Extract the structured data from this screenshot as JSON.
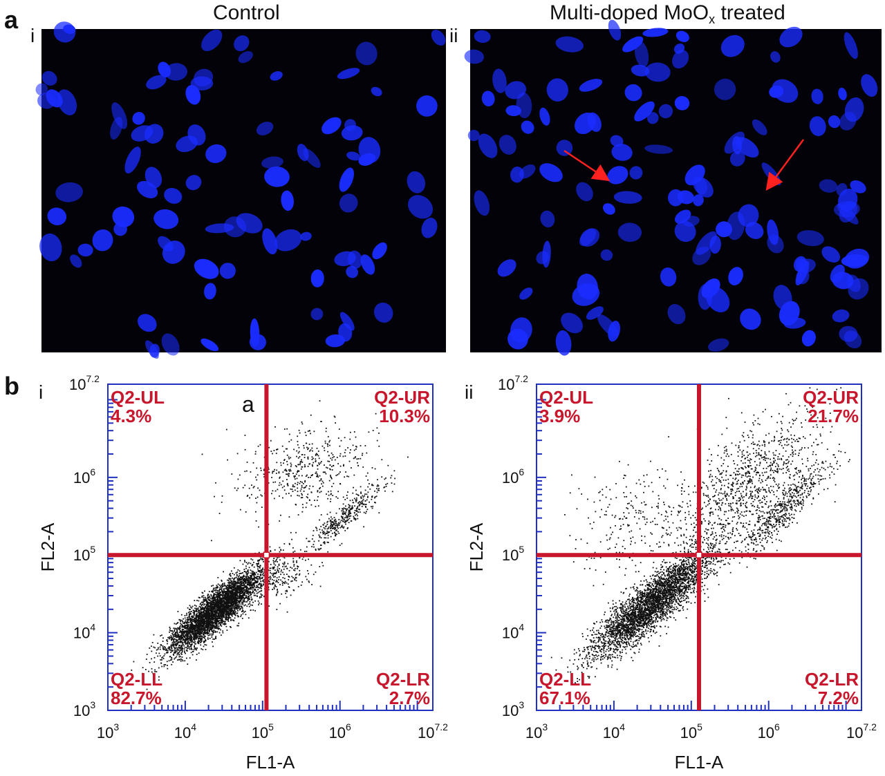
{
  "figure": {
    "panel_a": {
      "letter": "a",
      "images": [
        {
          "sub": "i",
          "title": "Control",
          "title_sub": ""
        },
        {
          "sub": "ii",
          "title": "Multi-doped MoO",
          "title_sub": "x",
          "title_after": " treated"
        }
      ]
    },
    "panel_b": {
      "letter": "b",
      "plots": [
        {
          "sub": "i",
          "corner_label": "a"
        },
        {
          "sub": "ii",
          "corner_label": ""
        }
      ]
    }
  },
  "colors": {
    "nucleus": "#1a2cff",
    "background": "#020208",
    "gate": "#c8162c",
    "axis": "#1f2fc0",
    "dot": "#111111"
  },
  "chart_data": [
    {
      "type": "scatter",
      "title": "",
      "xlabel": "FL1-A",
      "ylabel": "FL2-A",
      "xscale": "log",
      "yscale": "log",
      "xlim_log10": [
        3,
        7.2
      ],
      "ylim_log10": [
        3,
        7.2
      ],
      "x_tick_labels": [
        {
          "base": "10",
          "exp": "3"
        },
        {
          "base": "10",
          "exp": "4"
        },
        {
          "base": "10",
          "exp": "5"
        },
        {
          "base": "10",
          "exp": "6"
        },
        {
          "base": "10",
          "exp": "7.2"
        }
      ],
      "y_tick_labels": [
        {
          "base": "10",
          "exp": "3"
        },
        {
          "base": "10",
          "exp": "4"
        },
        {
          "base": "10",
          "exp": "5"
        },
        {
          "base": "10",
          "exp": "6"
        },
        {
          "base": "10",
          "exp": "7.2"
        }
      ],
      "gate": {
        "x_log10": 5.05,
        "y_log10": 5.0
      },
      "quadrants": [
        {
          "name": "Q2-UL",
          "percent": "4.3%",
          "position": "upper-left"
        },
        {
          "name": "Q2-UR",
          "percent": "10.3%",
          "position": "upper-right"
        },
        {
          "name": "Q2-LL",
          "percent": "82.7%",
          "position": "lower-left"
        },
        {
          "name": "Q2-LR",
          "percent": "2.7%",
          "position": "lower-right"
        }
      ],
      "populations": [
        {
          "cx": 4.4,
          "cy": 4.3,
          "sx": 0.32,
          "sy": 0.28,
          "rho": 0.88,
          "weight": 0.8
        },
        {
          "cx": 5.6,
          "cy": 6.1,
          "sx": 0.45,
          "sy": 0.3,
          "rho": 0.2,
          "weight": 0.1
        },
        {
          "cx": 6.05,
          "cy": 5.5,
          "sx": 0.25,
          "sy": 0.22,
          "rho": 0.92,
          "weight": 0.07
        },
        {
          "cx": 5.3,
          "cy": 4.7,
          "sx": 0.2,
          "sy": 0.15,
          "rho": 0.5,
          "weight": 0.03
        }
      ]
    },
    {
      "type": "scatter",
      "title": "",
      "xlabel": "FL1-A",
      "ylabel": "FL2-A",
      "xscale": "log",
      "yscale": "log",
      "xlim_log10": [
        3,
        7.2
      ],
      "ylim_log10": [
        3,
        7.2
      ],
      "x_tick_labels": [
        {
          "base": "10",
          "exp": "3"
        },
        {
          "base": "10",
          "exp": "4"
        },
        {
          "base": "10",
          "exp": "5"
        },
        {
          "base": "10",
          "exp": "6"
        },
        {
          "base": "10",
          "exp": "7.2"
        }
      ],
      "y_tick_labels": [
        {
          "base": "10",
          "exp": "3"
        },
        {
          "base": "10",
          "exp": "4"
        },
        {
          "base": "10",
          "exp": "5"
        },
        {
          "base": "10",
          "exp": "6"
        },
        {
          "base": "10",
          "exp": "7.2"
        }
      ],
      "gate": {
        "x_log10": 5.1,
        "y_log10": 5.0
      },
      "quadrants": [
        {
          "name": "Q2-UL",
          "percent": "3.9%",
          "position": "upper-left"
        },
        {
          "name": "Q2-UR",
          "percent": "21.7%",
          "position": "upper-right"
        },
        {
          "name": "Q2-LL",
          "percent": "67.1%",
          "position": "lower-left"
        },
        {
          "name": "Q2-LR",
          "percent": "7.2%",
          "position": "lower-right"
        }
      ],
      "populations": [
        {
          "cx": 4.5,
          "cy": 4.4,
          "sx": 0.4,
          "sy": 0.35,
          "rho": 0.88,
          "weight": 0.66
        },
        {
          "cx": 5.7,
          "cy": 5.9,
          "sx": 0.5,
          "sy": 0.45,
          "rho": 0.65,
          "weight": 0.2
        },
        {
          "cx": 6.2,
          "cy": 5.6,
          "sx": 0.3,
          "sy": 0.3,
          "rho": 0.9,
          "weight": 0.1
        },
        {
          "cx": 4.2,
          "cy": 5.5,
          "sx": 0.35,
          "sy": 0.35,
          "rho": 0.3,
          "weight": 0.04
        }
      ]
    }
  ]
}
